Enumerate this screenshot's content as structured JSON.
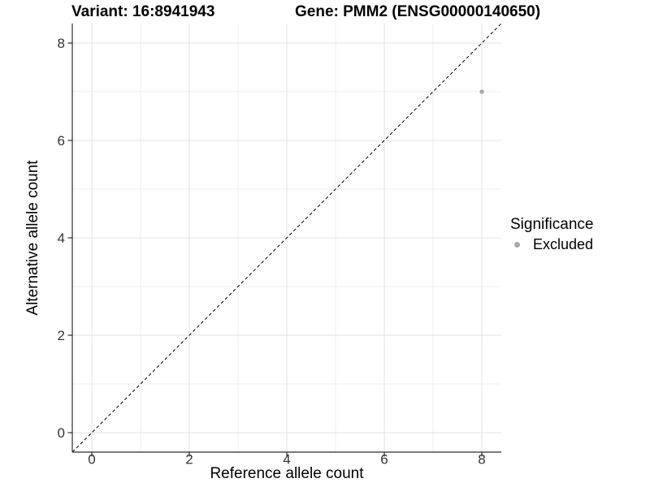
{
  "chart_data": {
    "type": "scatter",
    "titles": {
      "variant": "Variant: 16:8941943",
      "gene": "Gene: PMM2 (ENSG00000140650)"
    },
    "xlabel": "Reference allele count",
    "ylabel": "Alternative allele count",
    "xlim": [
      -0.4,
      8.4
    ],
    "ylim": [
      -0.4,
      8.4
    ],
    "x_ticks": [
      0,
      2,
      4,
      6,
      8
    ],
    "y_ticks": [
      0,
      2,
      4,
      6,
      8
    ],
    "x_minor_gridlines": [
      1,
      3,
      5,
      7
    ],
    "y_minor_gridlines": [
      1,
      3,
      5,
      7
    ],
    "grid": "major and minor gridlines, light gray on white panel",
    "identity_line": {
      "slope": 1,
      "intercept": 0,
      "style": "dashed",
      "color": "#000000"
    },
    "series": [
      {
        "name": "Excluded",
        "color": "#a8a8a8",
        "points": [
          {
            "x": 8,
            "y": 7
          }
        ]
      }
    ],
    "legend": {
      "title": "Significance",
      "position": "right",
      "entries": [
        {
          "label": "Excluded",
          "color": "#a8a8a8"
        }
      ]
    },
    "colors": {
      "background": "#ffffff",
      "axis_line": "#2b2b2b",
      "major_grid": "#e3e3e3",
      "minor_grid": "#efefef",
      "tick_label": "#333333"
    }
  }
}
